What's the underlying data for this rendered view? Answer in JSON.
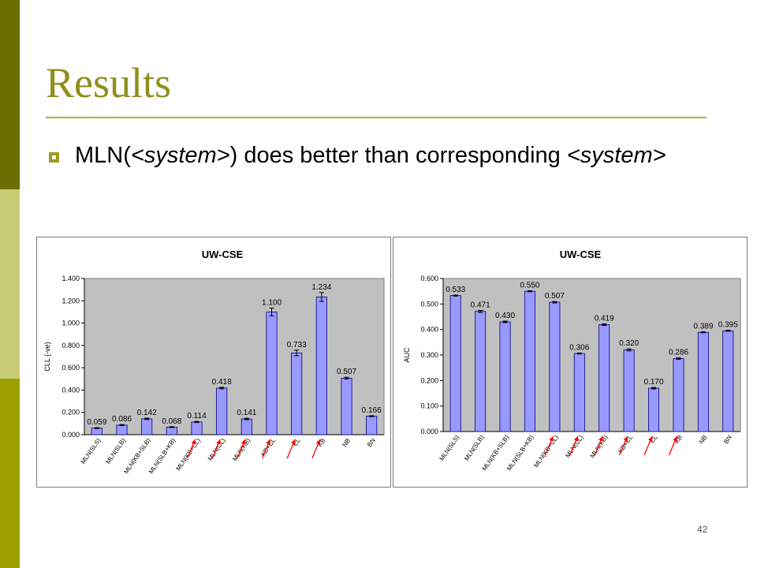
{
  "slide": {
    "title": "Results",
    "bullet": {
      "prefix": "MLN(",
      "sys1": "<system>",
      "middle": ") does better than corresponding",
      "sys2": "<system>"
    },
    "page_number": "42",
    "colors": {
      "accent": "#8f8f1c",
      "bar": "#9999ff",
      "plot_bg": "#c0c0c0",
      "arrow": "#ff0000"
    }
  },
  "chart_data": [
    {
      "type": "bar",
      "title": "UW-CSE",
      "ylabel": "CLL (-ve)",
      "ylim": [
        0,
        1.4
      ],
      "yticks": [
        "0.000",
        "0.200",
        "0.400",
        "0.600",
        "0.800",
        "1.000",
        "1.200",
        "1.400"
      ],
      "categories": [
        "MLN(SLS)",
        "MLN(SLB)",
        "MLN(KB+SLB)",
        "MLN(SLB+KB)",
        "MLN(KB+CL)",
        "MLN(CL)",
        "MLN(KB)",
        "KB+CL",
        "CL",
        "KB",
        "NB",
        "BN"
      ],
      "values": [
        0.059,
        0.086,
        0.142,
        0.068,
        0.114,
        0.418,
        0.141,
        1.1,
        0.733,
        1.234,
        0.507,
        0.166
      ],
      "labels": [
        "0.059",
        "0.086",
        "0.142",
        "0.068",
        "0.114",
        "0.418",
        "0.141",
        "1.100",
        "0.733",
        "1.234",
        "0.507",
        "0.166"
      ],
      "errors": [
        0.004,
        0.005,
        0.006,
        0.004,
        0.005,
        0.007,
        0.007,
        0.035,
        0.025,
        0.04,
        0.008,
        0.005
      ],
      "arrow_categories": [
        4,
        5,
        6,
        7,
        8,
        9
      ],
      "grid": false
    },
    {
      "type": "bar",
      "title": "UW-CSE",
      "ylabel": "AUC",
      "ylim": [
        0,
        0.6
      ],
      "yticks": [
        "0.000",
        "0.100",
        "0.200",
        "0.300",
        "0.400",
        "0.500",
        "0.600"
      ],
      "categories": [
        "MLN(SLS)",
        "MLN(SLB)",
        "MLN(KB+SLB)",
        "MLN(SLB+KB)",
        "MLN(KB+CL)",
        "MLN(CL)",
        "MLN(KB)",
        "KB+CL",
        "CL",
        "KB",
        "NB",
        "BN"
      ],
      "values": [
        0.533,
        0.471,
        0.43,
        0.55,
        0.507,
        0.306,
        0.419,
        0.32,
        0.17,
        0.286,
        0.389,
        0.395
      ],
      "labels": [
        "0.533",
        "0.471",
        "0.430",
        "0.550",
        "0.507",
        "0.306",
        "0.419",
        "0.320",
        "0.170",
        "0.286",
        "0.389",
        "0.395"
      ],
      "errors": [
        0.002,
        0.004,
        0.003,
        0.002,
        0.003,
        0.002,
        0.003,
        0.004,
        0.003,
        0.003,
        0.002,
        0.002
      ],
      "arrow_categories": [
        4,
        5,
        6,
        7,
        8,
        9
      ],
      "grid": false
    }
  ]
}
